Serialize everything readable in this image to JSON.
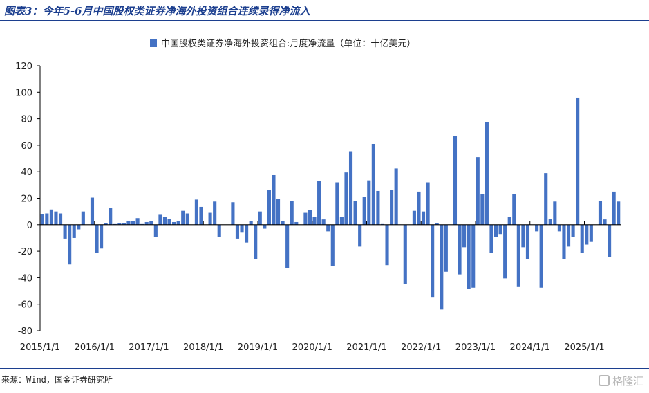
{
  "figure": {
    "title": "图表3：今年5-6月中国股权类证券净海外投资组合连续录得净流入",
    "source": "来源：Wind，国金证券研究所",
    "watermark": "格隆汇"
  },
  "colors": {
    "bar": "#4472c4",
    "rule": "#1c3f8f",
    "axis": "#000000"
  },
  "chart_data": {
    "type": "bar",
    "series": [
      {
        "name": "中国股权类证券净海外投资组合:月度净流量（单位：十亿美元）",
        "values": [
          8,
          8.5,
          11.5,
          10,
          8.5,
          -10.5,
          -30,
          -10,
          -3.5,
          10,
          0,
          20.5,
          -21,
          -18,
          1,
          12.5,
          0.5,
          1,
          1,
          2.5,
          3,
          5,
          0.5,
          2,
          3,
          -9.5,
          7.5,
          6,
          4.5,
          2,
          3,
          10.5,
          8.5,
          0,
          19,
          13.5,
          0,
          9,
          17.5,
          -9,
          0,
          0,
          17,
          -10.5,
          -6,
          -13.5,
          3,
          -26,
          10,
          -3,
          26,
          37.5,
          19.5,
          3,
          -33,
          18,
          2,
          0,
          9,
          11,
          6,
          33,
          4,
          -5,
          -31,
          32,
          6,
          39.5,
          55.5,
          18,
          -16.5,
          21,
          33.5,
          61,
          25.5,
          0.5,
          -30.5,
          26.5,
          42.5,
          0,
          -44.5,
          0,
          10.5,
          25,
          10,
          32,
          -54.5,
          1,
          -64,
          -35.5,
          0,
          67,
          -37.5,
          -17,
          -48.5,
          -47.5,
          51,
          23,
          77.5,
          -21,
          -9,
          -7,
          -40.5,
          6,
          23,
          -47,
          -17,
          -26,
          0,
          -5,
          -47.5,
          39,
          4.5,
          17.5,
          -5,
          -26,
          -16.5,
          -9,
          96,
          -21,
          -15,
          -13,
          0,
          18,
          4,
          -24.5,
          25,
          17.5
        ]
      }
    ],
    "x_start": "2015/1/1",
    "x_frequency": "monthly",
    "x_ticks": [
      "2015/1/1",
      "2016/1/1",
      "2017/1/1",
      "2018/1/1",
      "2019/1/1",
      "2020/1/1",
      "2021/1/1",
      "2022/1/1",
      "2023/1/1",
      "2024/1/1",
      "2025/1/1"
    ],
    "y_ticks": [
      120,
      100,
      80,
      60,
      40,
      20,
      0,
      -20,
      -40,
      -60,
      -80
    ],
    "ylim": [
      -80,
      120
    ],
    "grid": false,
    "legend_position": "top-center"
  }
}
